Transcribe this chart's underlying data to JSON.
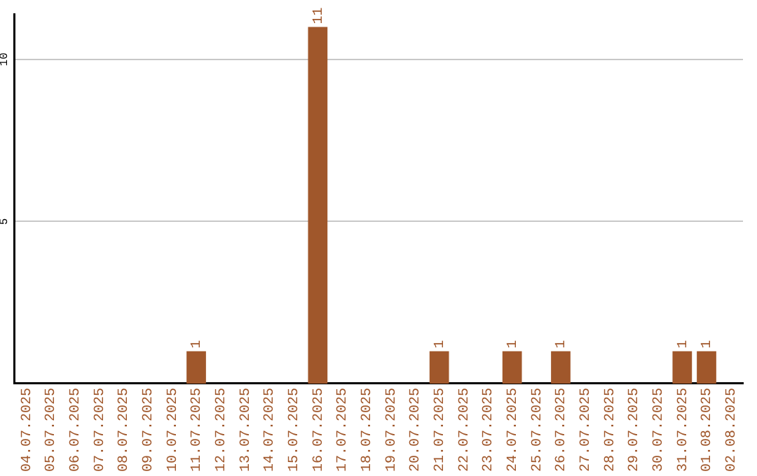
{
  "chart_data": {
    "type": "bar",
    "categories": [
      "04.07.2025",
      "05.07.2025",
      "06.07.2025",
      "07.07.2025",
      "08.07.2025",
      "09.07.2025",
      "10.07.2025",
      "11.07.2025",
      "12.07.2025",
      "13.07.2025",
      "14.07.2025",
      "15.07.2025",
      "16.07.2025",
      "17.07.2025",
      "18.07.2025",
      "19.07.2025",
      "20.07.2025",
      "21.07.2025",
      "22.07.2025",
      "23.07.2025",
      "24.07.2025",
      "25.07.2025",
      "26.07.2025",
      "27.07.2025",
      "28.07.2025",
      "29.07.2025",
      "30.07.2025",
      "31.07.2025",
      "01.08.2025",
      "02.08.2025"
    ],
    "values": [
      0,
      0,
      0,
      0,
      0,
      0,
      0,
      1,
      0,
      0,
      0,
      0,
      11,
      0,
      0,
      0,
      0,
      1,
      0,
      0,
      1,
      0,
      1,
      0,
      0,
      0,
      0,
      1,
      1,
      0
    ],
    "value_labels": [
      null,
      null,
      null,
      null,
      null,
      null,
      null,
      "1",
      null,
      null,
      null,
      null,
      "11",
      null,
      null,
      null,
      null,
      "1",
      null,
      null,
      "1",
      null,
      "1",
      null,
      null,
      null,
      null,
      "1",
      "1",
      null
    ],
    "color": "#a0572b",
    "ylim": [
      0,
      11.4
    ],
    "yticks": [
      5,
      10
    ],
    "grid": "y"
  }
}
